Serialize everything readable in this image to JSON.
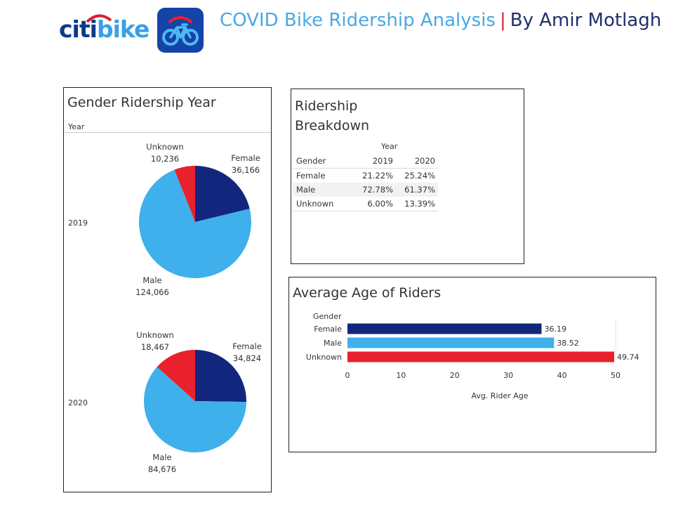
{
  "header": {
    "logo_text_1": "citi",
    "logo_text_2": "bike",
    "title": "COVID Bike Ridership Analysis",
    "separator": "|",
    "author": "By Amir Motlagh"
  },
  "colors": {
    "female": "#13267e",
    "male": "#3fb0ec",
    "unknown": "#e8212d",
    "brand_blue": "#1444a8"
  },
  "icons": {
    "app_icon": "bike-app-icon"
  },
  "chart_data": [
    {
      "type": "pie",
      "title": "Gender Ridership Year",
      "row_header": "Year",
      "pies": [
        {
          "year": "2019",
          "slices": [
            {
              "label": "Female",
              "value": 36166,
              "display": "36,166"
            },
            {
              "label": "Male",
              "value": 124066,
              "display": "124,066"
            },
            {
              "label": "Unknown",
              "value": 10236,
              "display": "10,236"
            }
          ]
        },
        {
          "year": "2020",
          "slices": [
            {
              "label": "Female",
              "value": 34824,
              "display": "34,824"
            },
            {
              "label": "Male",
              "value": 84676,
              "display": "84,676"
            },
            {
              "label": "Unknown",
              "value": 18467,
              "display": "18,467"
            }
          ]
        }
      ]
    },
    {
      "type": "table",
      "title_line1": "Ridership",
      "title_line2": "Breakdown",
      "column_group": "Year",
      "row_header": "Gender",
      "columns": [
        "2019",
        "2020"
      ],
      "rows": [
        {
          "gender": "Female",
          "values": [
            "21.22%",
            "25.24%"
          ]
        },
        {
          "gender": "Male",
          "values": [
            "72.78%",
            "61.37%"
          ]
        },
        {
          "gender": "Unknown",
          "values": [
            "6.00%",
            "13.39%"
          ]
        }
      ]
    },
    {
      "type": "bar",
      "title": "Average Age of Riders",
      "ylabel": "Gender",
      "xlabel": "Avg. Rider Age",
      "categories": [
        "Female",
        "Male",
        "Unknown"
      ],
      "values": [
        36.19,
        38.52,
        49.74
      ],
      "value_labels": [
        "36.19",
        "38.52",
        "49.74"
      ],
      "xlim": [
        0,
        50
      ],
      "xticks": [
        "0",
        "10",
        "20",
        "30",
        "40",
        "50"
      ]
    }
  ]
}
